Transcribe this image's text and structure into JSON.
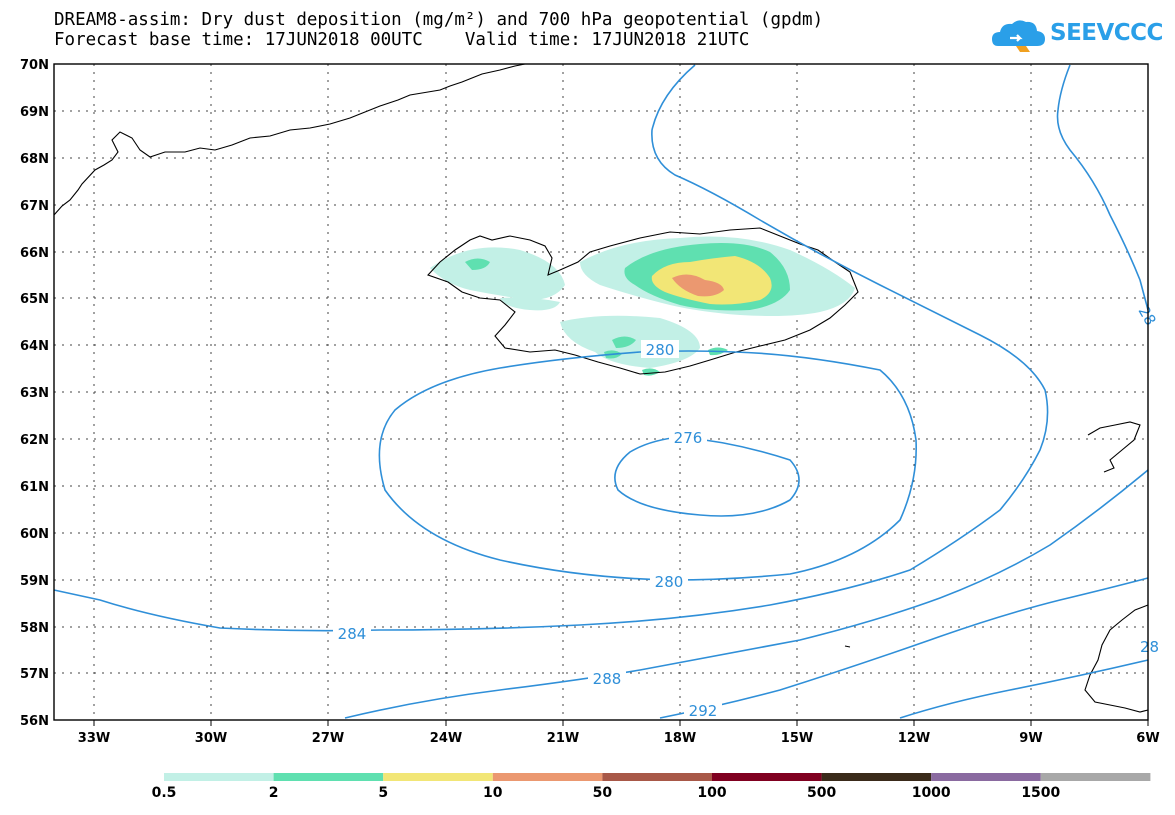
{
  "title": {
    "line1": "DREAM8-assim: Dry dust deposition (mg/m²) and 700 hPa geopotential (gpdm)",
    "line2": "Forecast base time: 17JUN2018 00UTC    Valid time: 17JUN2018 21UTC"
  },
  "logo": {
    "text": "SEEVCCC",
    "icon": "cloud-icon",
    "color": "#2a9fe8"
  },
  "axes": {
    "lat_labels": [
      "70N",
      "69N",
      "68N",
      "67N",
      "66N",
      "65N",
      "64N",
      "63N",
      "62N",
      "61N",
      "60N",
      "59N",
      "58N",
      "57N",
      "56N"
    ],
    "lon_labels": [
      "33W",
      "30W",
      "27W",
      "24W",
      "21W",
      "18W",
      "15W",
      "12W",
      "9W",
      "6W"
    ]
  },
  "contour_labels": [
    "280",
    "276",
    "280",
    "284",
    "288",
    "292",
    "28",
    "28"
  ],
  "colorbar": {
    "labels": [
      "0.5",
      "2",
      "5",
      "10",
      "50",
      "100",
      "500",
      "1000",
      "1500"
    ],
    "colors": [
      "#c2f0e6",
      "#5fe0b0",
      "#f2e676",
      "#eb9870",
      "#a85848",
      "#800020",
      "#3a2a1a",
      "#8a6aa0",
      "#a8a8a8"
    ]
  },
  "colors": {
    "contour": "#2f8fd8",
    "coast": "#000000",
    "dust_0_5": "#c2f0e6",
    "dust_2": "#5fe0b0",
    "dust_5": "#f2e676",
    "dust_10": "#eb9870"
  }
}
